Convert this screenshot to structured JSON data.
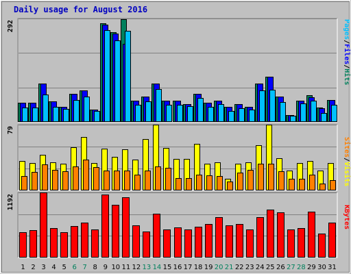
{
  "chart_data": {
    "type": "bar",
    "title": "Daily usage for August 2016",
    "categories": [
      "1",
      "2",
      "3",
      "4",
      "5",
      "6",
      "7",
      "8",
      "9",
      "10",
      "11",
      "12",
      "13",
      "14",
      "15",
      "16",
      "17",
      "18",
      "19",
      "20",
      "21",
      "22",
      "23",
      "24",
      "25",
      "26",
      "27",
      "28",
      "29",
      "30",
      "31"
    ],
    "weekend_days": [
      "6",
      "7",
      "13",
      "14",
      "20",
      "21",
      "27",
      "28"
    ],
    "colors": {
      "hits": "#00805c",
      "files": "#0000ff",
      "pages": "#00c0ff",
      "visits": "#ffff00",
      "sites": "#ff8000",
      "kbytes": "#ff0000",
      "weekday_label": "#000000",
      "weekend_label": "#00805c"
    },
    "panels": [
      {
        "name": "hits-files-pages",
        "ymax": 292,
        "ytick_label": "292",
        "legend": [
          {
            "text": "Pages",
            "color": "#00c0ff"
          },
          {
            "text": "/",
            "color": "#000000"
          },
          {
            "text": "Files",
            "color": "#0000ff"
          },
          {
            "text": "/",
            "color": "#000000"
          },
          {
            "text": "Hits",
            "color": "#00805c"
          }
        ],
        "series": [
          {
            "key": "hits",
            "values": [
              54,
              54,
              108,
              58,
              43,
              80,
              88,
              34,
              278,
              253,
              290,
              60,
              72,
              108,
              60,
              60,
              50,
              80,
              54,
              60,
              42,
              50,
              42,
              108,
              127,
              72,
              20,
              60,
              76,
              40,
              62
            ]
          },
          {
            "key": "files",
            "values": [
              54,
              54,
              108,
              58,
              43,
              80,
              88,
              34,
              275,
              250,
              220,
              60,
              72,
              108,
              60,
              60,
              50,
              80,
              54,
              60,
              42,
              50,
              42,
              108,
              127,
              72,
              20,
              60,
              70,
              38,
              62
            ]
          },
          {
            "key": "pages",
            "values": [
              40,
              40,
              78,
              43,
              36,
              62,
              72,
              30,
              260,
              230,
              258,
              48,
              58,
              92,
              48,
              48,
              44,
              68,
              42,
              50,
              30,
              38,
              34,
              88,
              90,
              56,
              18,
              52,
              60,
              25,
              48
            ]
          }
        ]
      },
      {
        "name": "visits-sites",
        "ymax": 79,
        "ytick_label": "79",
        "legend": [
          {
            "text": "Sites",
            "color": "#ff8000"
          },
          {
            "text": "/",
            "color": "#000000"
          },
          {
            "text": "Visits",
            "color": "#ffff00"
          }
        ],
        "series": [
          {
            "key": "visits",
            "values": [
              35,
              33,
              43,
              34,
              32,
              52,
              64,
              33,
              50,
              40,
              49,
              37,
              62,
              79,
              51,
              38,
              38,
              56,
              32,
              34,
              14,
              32,
              34,
              54,
              79,
              39,
              24,
              33,
              35,
              24,
              33
            ]
          },
          {
            "key": "sites",
            "values": [
              17,
              22,
              31,
              25,
              23,
              29,
              37,
              28,
              24,
              24,
              24,
              19,
              24,
              29,
              27,
              15,
              15,
              19,
              18,
              17,
              11,
              21,
              25,
              32,
              32,
              23,
              14,
              14,
              19,
              8,
              12
            ]
          }
        ]
      },
      {
        "name": "kbytes",
        "ymax": 1192,
        "ytick_label": "1192",
        "legend": [
          {
            "text": "KBytes",
            "color": "#ff0000"
          }
        ],
        "series": [
          {
            "key": "kbytes",
            "values": [
              460,
              500,
              1192,
              540,
              460,
              580,
              640,
              520,
              1160,
              960,
              1100,
              590,
              480,
              800,
              520,
              550,
              520,
              570,
              610,
              740,
              590,
              610,
              510,
              740,
              880,
              830,
              510,
              540,
              840,
              440,
              640
            ]
          }
        ]
      }
    ]
  }
}
